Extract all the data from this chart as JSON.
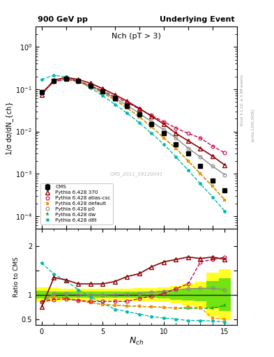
{
  "title_left": "900 GeV pp",
  "title_right": "Underlying Event",
  "plot_title": "Nch (pT > 3)",
  "watermark": "CMS_2011_S9120041",
  "rivet_label": "Rivet 3.1.10, ≥ 3.3M events",
  "arxiv_label": "[arXiv:1306.3436]",
  "xlabel": "N_{ch}",
  "ylabel_main": "1/σ dσ/dN_{ch}",
  "ylabel_ratio": "Ratio to CMS",
  "xdata": [
    0,
    1,
    2,
    3,
    4,
    5,
    6,
    7,
    8,
    9,
    10,
    11,
    12,
    13,
    14,
    15
  ],
  "cms_y": [
    0.085,
    0.155,
    0.175,
    0.155,
    0.12,
    0.088,
    0.06,
    0.04,
    0.025,
    0.015,
    0.009,
    0.005,
    0.003,
    0.0015,
    0.0007,
    0.0004
  ],
  "cms_yerr": [
    0.005,
    0.006,
    0.006,
    0.005,
    0.004,
    0.003,
    0.002,
    0.0015,
    0.001,
    0.0006,
    0.0004,
    0.0002,
    0.00012,
    7e-05,
    3.5e-05,
    2e-05
  ],
  "py370_y": [
    0.075,
    0.165,
    0.19,
    0.17,
    0.138,
    0.103,
    0.074,
    0.052,
    0.035,
    0.023,
    0.015,
    0.009,
    0.006,
    0.004,
    0.0026,
    0.0016
  ],
  "py_atlas_y": [
    0.083,
    0.152,
    0.174,
    0.155,
    0.122,
    0.092,
    0.066,
    0.048,
    0.034,
    0.024,
    0.017,
    0.012,
    0.009,
    0.007,
    0.0045,
    0.0031
  ],
  "py_d6t_y": [
    0.17,
    0.215,
    0.195,
    0.155,
    0.108,
    0.07,
    0.044,
    0.027,
    0.016,
    0.009,
    0.005,
    0.0025,
    0.0012,
    0.00058,
    0.00028,
    0.00013
  ],
  "py_default_y": [
    0.083,
    0.15,
    0.17,
    0.148,
    0.113,
    0.081,
    0.055,
    0.036,
    0.022,
    0.013,
    0.007,
    0.004,
    0.002,
    0.001,
    0.0005,
    0.00024
  ],
  "py_dw_y": [
    0.083,
    0.15,
    0.172,
    0.152,
    0.117,
    0.083,
    0.056,
    0.036,
    0.022,
    0.013,
    0.007,
    0.004,
    0.002,
    0.001,
    0.0005,
    0.00024
  ],
  "py_p0_y": [
    0.083,
    0.153,
    0.174,
    0.154,
    0.12,
    0.088,
    0.061,
    0.041,
    0.027,
    0.017,
    0.011,
    0.007,
    0.004,
    0.0025,
    0.0015,
    0.00095
  ],
  "ratio_py370": [
    0.75,
    1.35,
    1.3,
    1.22,
    1.22,
    1.22,
    1.27,
    1.37,
    1.43,
    1.57,
    1.67,
    1.72,
    1.77,
    1.74,
    1.77,
    1.72
  ],
  "ratio_pyatlas": [
    0.85,
    0.9,
    0.91,
    0.88,
    0.86,
    0.86,
    0.86,
    0.86,
    0.92,
    0.97,
    1.02,
    1.12,
    1.22,
    1.67,
    1.72,
    1.77
  ],
  "ratio_pyd6t": [
    1.65,
    1.42,
    1.28,
    1.1,
    0.95,
    0.82,
    0.7,
    0.65,
    0.6,
    0.55,
    0.52,
    0.5,
    0.47,
    0.47,
    0.46,
    0.44
  ],
  "ratio_pydefault": [
    0.85,
    0.95,
    0.92,
    0.88,
    0.83,
    0.8,
    0.78,
    0.77,
    0.76,
    0.75,
    0.74,
    0.72,
    0.75,
    0.73,
    0.52,
    0.5
  ],
  "ratio_pydw": [
    0.85,
    0.95,
    0.93,
    0.88,
    0.84,
    0.8,
    0.78,
    0.77,
    0.76,
    0.75,
    0.74,
    0.72,
    0.72,
    0.72,
    0.72,
    0.78
  ],
  "ratio_pyp0": [
    0.85,
    1.02,
    1.02,
    1.0,
    0.99,
    0.99,
    1.0,
    1.01,
    1.02,
    1.05,
    1.07,
    1.1,
    1.12,
    1.13,
    1.13,
    1.1
  ],
  "band_yellow_lo": [
    0.85,
    0.87,
    0.88,
    0.88,
    0.88,
    0.88,
    0.88,
    0.88,
    0.87,
    0.87,
    0.85,
    0.82,
    0.78,
    0.74,
    0.55,
    0.48
  ],
  "band_yellow_hi": [
    1.15,
    1.13,
    1.12,
    1.12,
    1.12,
    1.12,
    1.12,
    1.12,
    1.13,
    1.13,
    1.15,
    1.18,
    1.22,
    1.26,
    1.45,
    1.52
  ],
  "band_green_lo": [
    0.92,
    0.93,
    0.94,
    0.94,
    0.94,
    0.94,
    0.94,
    0.94,
    0.93,
    0.93,
    0.92,
    0.9,
    0.88,
    0.86,
    0.72,
    0.67
  ],
  "band_green_hi": [
    1.08,
    1.07,
    1.06,
    1.06,
    1.06,
    1.06,
    1.06,
    1.06,
    1.07,
    1.07,
    1.08,
    1.1,
    1.12,
    1.14,
    1.28,
    1.33
  ],
  "color_cms": "#000000",
  "color_py370": "#8b0000",
  "color_pyatlas": "#cc0044",
  "color_pyd6t": "#00bbaa",
  "color_pydefault": "#ff8c00",
  "color_pydw": "#00aa00",
  "color_pyp0": "#888888",
  "bg_color": "#ffffff",
  "ylim_main": [
    5e-05,
    3.0
  ],
  "ylim_ratio": [
    0.38,
    2.35
  ],
  "xlim": [
    -0.5,
    16.0
  ]
}
